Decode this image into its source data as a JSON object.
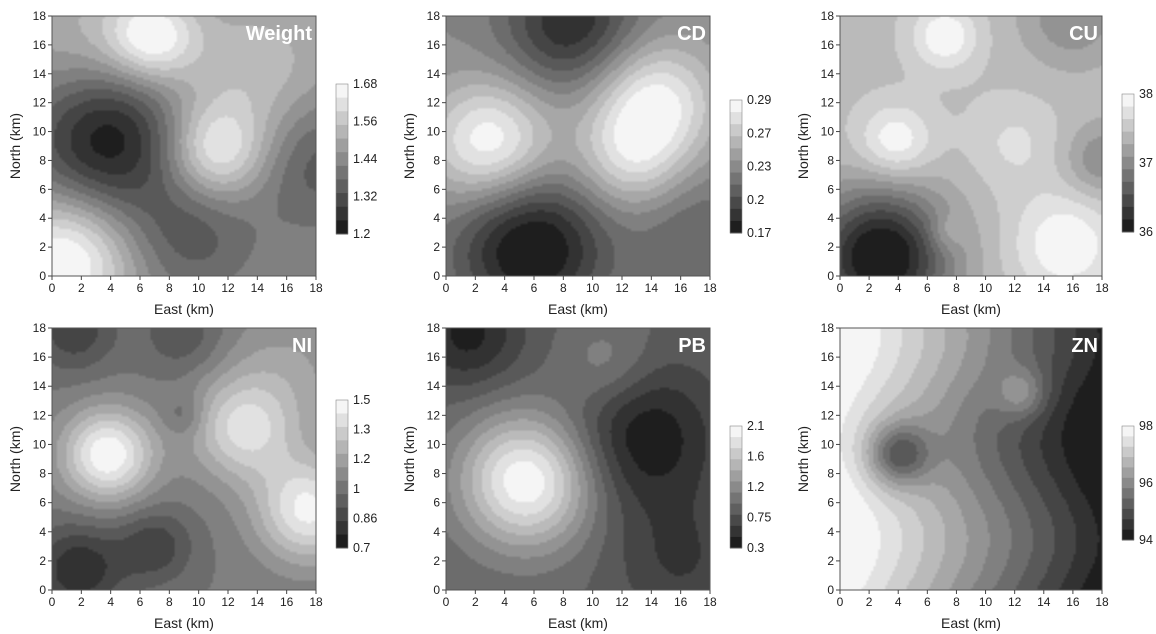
{
  "chart_data": [
    {
      "type": "heatmap",
      "title": "Weight",
      "xlabel": "East (km)",
      "ylabel": "North (km)",
      "xlim": [
        0,
        18
      ],
      "ylim": [
        0,
        18
      ],
      "xticks": [
        "0",
        "2",
        "4",
        "6",
        "8",
        "10",
        "12",
        "14",
        "16",
        "18"
      ],
      "yticks": [
        "0",
        "2",
        "4",
        "6",
        "8",
        "10",
        "12",
        "14",
        "16",
        "18"
      ],
      "colorbar_ticks": [
        "1.68",
        "1.56",
        "1.44",
        "1.32",
        "1.2"
      ],
      "colorbar_range": [
        1.2,
        1.72
      ],
      "base_value": 1.46,
      "features": [
        {
          "x": 3.8,
          "y": 9.5,
          "value": 1.21,
          "radius": 3.6
        },
        {
          "x": 0.8,
          "y": 1.0,
          "value": 1.74,
          "radius": 3.2
        },
        {
          "x": 6.8,
          "y": 16.6,
          "value": 1.7,
          "radius": 2.2
        },
        {
          "x": 11.2,
          "y": 8.6,
          "value": 1.68,
          "radius": 2.4
        },
        {
          "x": 18.0,
          "y": 8.0,
          "value": 1.34,
          "radius": 3.2
        },
        {
          "x": 9.5,
          "y": 3.0,
          "value": 1.35,
          "radius": 3.0
        },
        {
          "x": 14.0,
          "y": 14.0,
          "value": 1.58,
          "radius": 4.0
        },
        {
          "x": 2.0,
          "y": 16.5,
          "value": 1.55,
          "radius": 3.5
        }
      ]
    },
    {
      "type": "heatmap",
      "title": "CD",
      "xlabel": "East (km)",
      "ylabel": "North (km)",
      "xlim": [
        0,
        18
      ],
      "ylim": [
        0,
        18
      ],
      "xticks": [
        "0",
        "2",
        "4",
        "6",
        "8",
        "10",
        "12",
        "14",
        "16",
        "18"
      ],
      "yticks": [
        "0",
        "2",
        "4",
        "6",
        "8",
        "10",
        "12",
        "14",
        "16",
        "18"
      ],
      "colorbar_ticks": [
        "0.29",
        "0.27",
        "0.23",
        "0.2",
        "0.17"
      ],
      "colorbar_range": [
        0.17,
        0.29
      ],
      "base_value": 0.23,
      "features": [
        {
          "x": 3.0,
          "y": 9.2,
          "value": 0.29,
          "radius": 3.0
        },
        {
          "x": 14.2,
          "y": 12.0,
          "value": 0.285,
          "radius": 3.0
        },
        {
          "x": 12.5,
          "y": 8.0,
          "value": 0.265,
          "radius": 2.6
        },
        {
          "x": 5.8,
          "y": 2.0,
          "value": 0.165,
          "radius": 3.6
        },
        {
          "x": 8.5,
          "y": 17.5,
          "value": 0.18,
          "radius": 3.2
        },
        {
          "x": 17.0,
          "y": 3.0,
          "value": 0.21,
          "radius": 3.0
        }
      ]
    },
    {
      "type": "heatmap",
      "title": "CU",
      "xlabel": "East (km)",
      "ylabel": "North (km)",
      "xlim": [
        0,
        18
      ],
      "ylim": [
        0,
        18
      ],
      "xticks": [
        "0",
        "2",
        "4",
        "6",
        "8",
        "10",
        "12",
        "14",
        "16",
        "18"
      ],
      "yticks": [
        "0",
        "2",
        "4",
        "6",
        "8",
        "10",
        "12",
        "14",
        "16",
        "18"
      ],
      "colorbar_ticks": [
        "38",
        "37",
        "36"
      ],
      "colorbar_range": [
        36,
        38
      ],
      "base_value": 37.45,
      "features": [
        {
          "x": 2.8,
          "y": 1.3,
          "value": 35.9,
          "radius": 3.3
        },
        {
          "x": 3.8,
          "y": 9.3,
          "value": 38.0,
          "radius": 1.8
        },
        {
          "x": 15.5,
          "y": 2.2,
          "value": 38.0,
          "radius": 2.6
        },
        {
          "x": 7.2,
          "y": 16.6,
          "value": 38.0,
          "radius": 1.6
        },
        {
          "x": 12.0,
          "y": 9.2,
          "value": 37.7,
          "radius": 2.2
        },
        {
          "x": 18.0,
          "y": 8.0,
          "value": 37.0,
          "radius": 1.8
        },
        {
          "x": 16.0,
          "y": 18.0,
          "value": 37.0,
          "radius": 2.4
        },
        {
          "x": 7.3,
          "y": 3.0,
          "value": 37.7,
          "radius": 0.9
        }
      ]
    },
    {
      "type": "heatmap",
      "title": "NI",
      "xlabel": "East (km)",
      "ylabel": "North (km)",
      "xlim": [
        0,
        18
      ],
      "ylim": [
        0,
        18
      ],
      "xticks": [
        "0",
        "2",
        "4",
        "6",
        "8",
        "10",
        "12",
        "14",
        "16",
        "18"
      ],
      "yticks": [
        "0",
        "2",
        "4",
        "6",
        "8",
        "10",
        "12",
        "14",
        "16",
        "18"
      ],
      "colorbar_ticks": [
        "1.5",
        "1.3",
        "1.2",
        "1",
        "0.86",
        "0.7"
      ],
      "colorbar_range": [
        0.7,
        1.55
      ],
      "base_value": 1.06,
      "features": [
        {
          "x": 3.8,
          "y": 9.3,
          "value": 1.55,
          "radius": 2.2
        },
        {
          "x": 13.0,
          "y": 11.0,
          "value": 1.4,
          "radius": 2.5
        },
        {
          "x": 17.5,
          "y": 5.5,
          "value": 1.5,
          "radius": 2.5
        },
        {
          "x": 1.8,
          "y": 1.4,
          "value": 0.78,
          "radius": 2.2
        },
        {
          "x": 7.0,
          "y": 3.0,
          "value": 0.86,
          "radius": 1.8
        },
        {
          "x": 1.5,
          "y": 17.8,
          "value": 0.86,
          "radius": 2.0
        },
        {
          "x": 9.0,
          "y": 17.5,
          "value": 0.92,
          "radius": 2.0
        },
        {
          "x": 16.0,
          "y": 15.0,
          "value": 1.2,
          "radius": 3.5
        },
        {
          "x": 9.0,
          "y": 12.0,
          "value": 0.95,
          "radius": 1.0
        }
      ]
    },
    {
      "type": "heatmap",
      "title": "PB",
      "xlabel": "East (km)",
      "ylabel": "North (km)",
      "xlim": [
        0,
        18
      ],
      "ylim": [
        0,
        18
      ],
      "xticks": [
        "0",
        "2",
        "4",
        "6",
        "8",
        "10",
        "12",
        "14",
        "16",
        "18"
      ],
      "yticks": [
        "0",
        "2",
        "4",
        "6",
        "8",
        "10",
        "12",
        "14",
        "16",
        "18"
      ],
      "colorbar_ticks": [
        "2.1",
        "1.6",
        "1.2",
        "0.75",
        "0.3"
      ],
      "colorbar_range": [
        0.3,
        2.1
      ],
      "base_value": 0.9,
      "features": [
        {
          "x": 5.5,
          "y": 7.5,
          "value": 2.1,
          "radius": 3.2
        },
        {
          "x": 13.5,
          "y": 10.5,
          "value": 0.32,
          "radius": 3.6
        },
        {
          "x": 1.5,
          "y": 17.5,
          "value": 0.4,
          "radius": 2.6
        },
        {
          "x": 11.0,
          "y": 15.5,
          "value": 1.2,
          "radius": 2.2
        },
        {
          "x": 16.0,
          "y": 2.0,
          "value": 0.6,
          "radius": 3.2
        }
      ]
    },
    {
      "type": "heatmap",
      "title": "ZN",
      "xlabel": "East (km)",
      "ylabel": "North (km)",
      "xlim": [
        0,
        18
      ],
      "ylim": [
        0,
        18
      ],
      "xticks": [
        "0",
        "2",
        "4",
        "6",
        "8",
        "10",
        "12",
        "14",
        "16",
        "18"
      ],
      "yticks": [
        "0",
        "2",
        "4",
        "6",
        "8",
        "10",
        "12",
        "14",
        "16",
        "18"
      ],
      "colorbar_ticks": [
        "98",
        "96",
        "94"
      ],
      "colorbar_range": [
        94,
        99
      ],
      "gradient": {
        "axis": "x",
        "from": 99,
        "to": 94
      },
      "features": [
        {
          "x": 4.0,
          "y": 9.3,
          "value": 95.6,
          "radius": 1.5
        },
        {
          "x": 12.5,
          "y": 13.5,
          "value": 96.8,
          "radius": 1.2
        }
      ]
    }
  ]
}
